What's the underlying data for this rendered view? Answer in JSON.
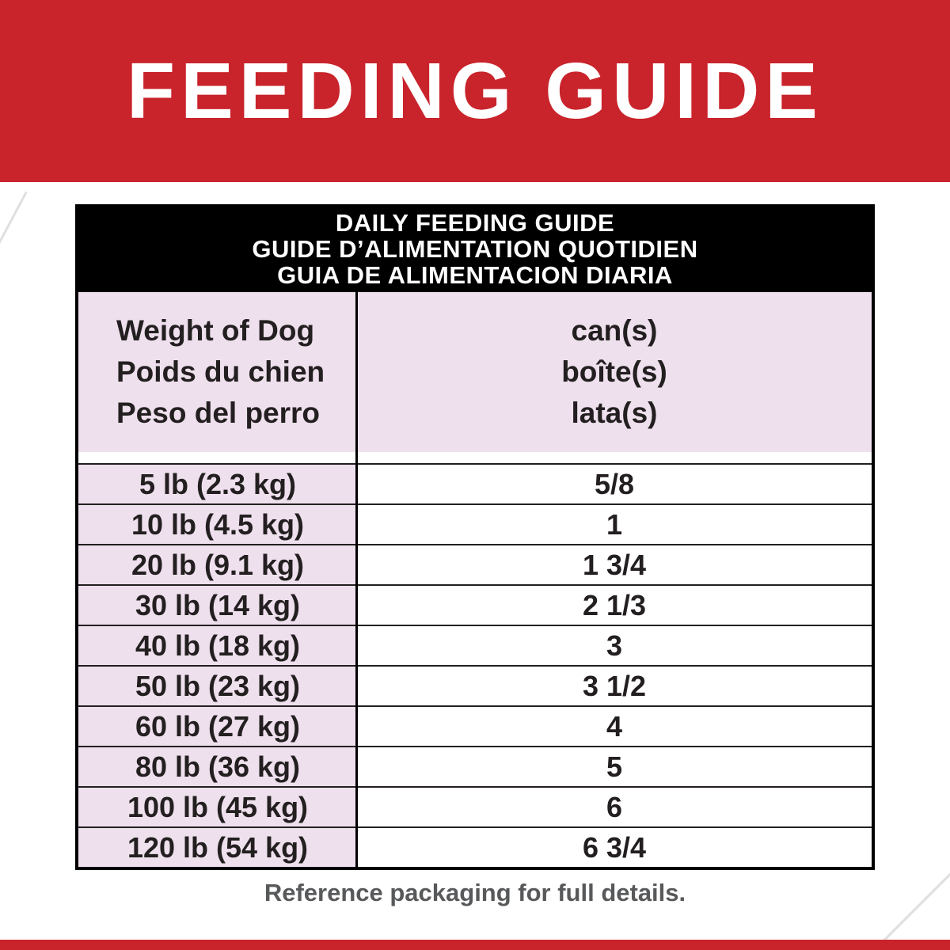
{
  "colors": {
    "red": "#c9232b",
    "pink": "#eee0ec",
    "text_dark": "#231f20",
    "footnote_gray": "#58595b"
  },
  "banner": {
    "title": "FEEDING GUIDE"
  },
  "table": {
    "title_lines": [
      "DAILY FEEDING GUIDE",
      "GUIDE D’ALIMENTATION QUOTIDIEN",
      "GUIA DE ALIMENTACION DIARIA"
    ],
    "header": {
      "weight_lines": [
        "Weight of Dog",
        "Poids du chien",
        "Peso del perro"
      ],
      "cans_lines": [
        "can(s)",
        "boîte(s)",
        "lata(s)"
      ]
    },
    "rows": [
      {
        "weight": "5 lb (2.3 kg)",
        "cans": "5/8"
      },
      {
        "weight": "10 lb (4.5 kg)",
        "cans": "1"
      },
      {
        "weight": "20 lb (9.1 kg)",
        "cans": "1 3/4"
      },
      {
        "weight": "30 lb (14 kg)",
        "cans": "2 1/3"
      },
      {
        "weight": "40 lb (18 kg)",
        "cans": "3"
      },
      {
        "weight": "50 lb (23 kg)",
        "cans": "3 1/2"
      },
      {
        "weight": "60 lb (27 kg)",
        "cans": "4"
      },
      {
        "weight": "80 lb (36 kg)",
        "cans": "5"
      },
      {
        "weight": "100 lb (45 kg)",
        "cans": "6"
      },
      {
        "weight": "120 lb (54 kg)",
        "cans": "6 3/4"
      }
    ]
  },
  "footer": {
    "note": "Reference packaging for full details."
  }
}
